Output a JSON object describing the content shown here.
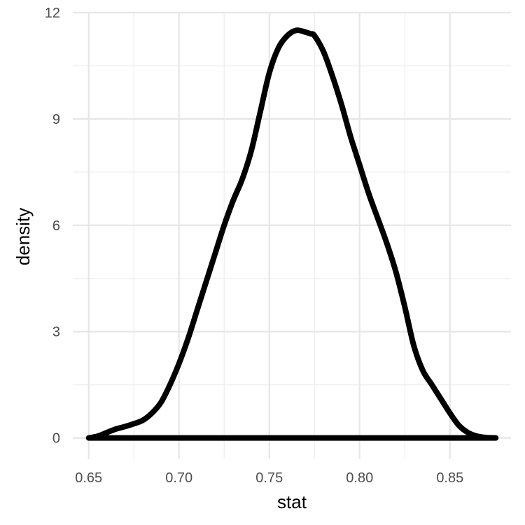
{
  "chart_data": {
    "type": "line",
    "title": "",
    "xlabel": "stat",
    "ylabel": "density",
    "xlim": [
      0.6412,
      0.8838
    ],
    "ylim": [
      -0.6,
      12.0
    ],
    "x_ticks": [
      0.65,
      0.7,
      0.75,
      0.8,
      0.85
    ],
    "x_tick_labels": [
      "0.65",
      "0.70",
      "0.75",
      "0.80",
      "0.85"
    ],
    "y_ticks": [
      0,
      3,
      6,
      9,
      12
    ],
    "y_tick_labels": [
      "0",
      "3",
      "6",
      "9",
      "12"
    ],
    "grid": true,
    "legend": "none",
    "series": [
      {
        "line_color": "#000000",
        "x": [
          0.65,
          0.655,
          0.66,
          0.665,
          0.67,
          0.675,
          0.68,
          0.685,
          0.69,
          0.695,
          0.7,
          0.705,
          0.71,
          0.715,
          0.72,
          0.725,
          0.73,
          0.735,
          0.74,
          0.745,
          0.75,
          0.755,
          0.76,
          0.765,
          0.77,
          0.773,
          0.775,
          0.78,
          0.785,
          0.79,
          0.795,
          0.8,
          0.805,
          0.81,
          0.815,
          0.82,
          0.825,
          0.83,
          0.835,
          0.84,
          0.845,
          0.85,
          0.855,
          0.86,
          0.865,
          0.87,
          0.875,
          0.875,
          0.65
        ],
        "y": [
          0.0,
          0.05,
          0.15,
          0.25,
          0.32,
          0.4,
          0.5,
          0.7,
          1.0,
          1.5,
          2.1,
          2.8,
          3.6,
          4.4,
          5.2,
          6.0,
          6.7,
          7.3,
          8.1,
          9.2,
          10.3,
          11.0,
          11.35,
          11.5,
          11.45,
          11.4,
          11.35,
          10.9,
          10.2,
          9.4,
          8.5,
          7.7,
          6.9,
          6.2,
          5.5,
          4.7,
          3.7,
          2.6,
          1.9,
          1.5,
          1.1,
          0.7,
          0.35,
          0.15,
          0.05,
          0.01,
          0.0,
          0.0,
          0.0
        ]
      }
    ]
  }
}
